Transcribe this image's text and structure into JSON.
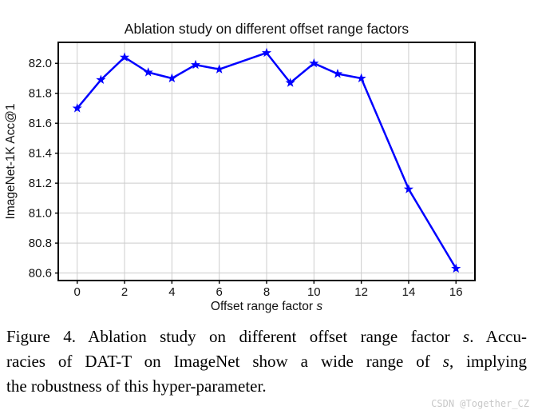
{
  "watermark": {
    "text": "CSDN @Together_CZ",
    "color": "#c8c8c8"
  },
  "caption": {
    "lines": [
      [
        {
          "t": "Figure 4. Ablation study on different offset range factor "
        },
        {
          "t": "s",
          "i": true
        },
        {
          "t": ". Accu-"
        }
      ],
      [
        {
          "t": "racies of DAT-T on ImageNet show a wide range of "
        },
        {
          "t": "s",
          "i": true
        },
        {
          "t": ", implying"
        }
      ],
      [
        {
          "t": "the robustness of this hyper-parameter."
        }
      ]
    ]
  },
  "chart_data": {
    "type": "line",
    "title": "Ablation study on different offset range factors",
    "xlabel": {
      "prefix": "Offset range factor ",
      "var": "s"
    },
    "ylabel": "ImageNet-1K Acc@1",
    "x": [
      0,
      1,
      2,
      3,
      4,
      5,
      6,
      8,
      9,
      10,
      11,
      12,
      14,
      16
    ],
    "y": [
      81.7,
      81.89,
      82.04,
      81.94,
      81.9,
      81.99,
      81.96,
      82.07,
      81.87,
      82.0,
      81.93,
      81.9,
      81.16,
      80.63
    ],
    "xticks": [
      0,
      2,
      4,
      6,
      8,
      10,
      12,
      14,
      16
    ],
    "yticks": [
      80.6,
      80.8,
      81.0,
      81.2,
      81.4,
      81.6,
      81.8,
      82.0
    ],
    "xlim": [
      -0.8,
      16.8
    ],
    "ylim": [
      80.55,
      82.14
    ],
    "grid": true,
    "legend_position": "none",
    "marker": "star",
    "colors": {
      "line": "#0000ff",
      "grid": "#cccccc",
      "frame": "#000000",
      "text": "#111111"
    }
  }
}
